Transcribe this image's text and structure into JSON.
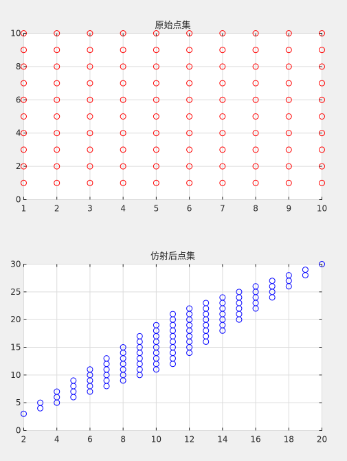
{
  "chart_data": [
    {
      "type": "scatter",
      "title": "原始点集",
      "xlabel": "",
      "ylabel": "",
      "xlim": [
        1,
        10
      ],
      "ylim": [
        0,
        10
      ],
      "xticks": [
        1,
        2,
        3,
        4,
        5,
        6,
        7,
        8,
        9,
        10
      ],
      "yticks": [
        0,
        2,
        4,
        6,
        8,
        10
      ],
      "grid": true,
      "marker": "circle-open",
      "color": "#ff0000",
      "series": [
        {
          "x_values": [
            1,
            2,
            3,
            4,
            5,
            6,
            7,
            8,
            9,
            10
          ],
          "y_values": [
            1,
            2,
            3,
            4,
            5,
            6,
            7,
            8,
            9,
            10
          ],
          "layout": "all x-y combinations"
        }
      ]
    },
    {
      "type": "scatter",
      "title": "仿射后点集",
      "xlabel": "",
      "ylabel": "",
      "xlim": [
        2,
        20
      ],
      "ylim": [
        0,
        30
      ],
      "xticks": [
        2,
        4,
        6,
        8,
        10,
        12,
        14,
        16,
        18,
        20
      ],
      "yticks": [
        0,
        5,
        10,
        15,
        20,
        25,
        30
      ],
      "grid": true,
      "marker": "circle-open",
      "color": "#0000ff",
      "series": [
        {
          "points": [
            [
              2,
              3
            ],
            [
              3,
              4
            ],
            [
              3,
              5
            ],
            [
              4,
              5
            ],
            [
              4,
              6
            ],
            [
              4,
              7
            ],
            [
              5,
              6
            ],
            [
              5,
              7
            ],
            [
              5,
              8
            ],
            [
              5,
              9
            ],
            [
              6,
              7
            ],
            [
              6,
              8
            ],
            [
              6,
              9
            ],
            [
              6,
              10
            ],
            [
              6,
              11
            ],
            [
              7,
              8
            ],
            [
              7,
              9
            ],
            [
              7,
              10
            ],
            [
              7,
              11
            ],
            [
              7,
              12
            ],
            [
              7,
              13
            ],
            [
              8,
              9
            ],
            [
              8,
              10
            ],
            [
              8,
              11
            ],
            [
              8,
              12
            ],
            [
              8,
              13
            ],
            [
              8,
              14
            ],
            [
              8,
              15
            ],
            [
              9,
              10
            ],
            [
              9,
              11
            ],
            [
              9,
              12
            ],
            [
              9,
              13
            ],
            [
              9,
              14
            ],
            [
              9,
              15
            ],
            [
              9,
              16
            ],
            [
              9,
              17
            ],
            [
              10,
              11
            ],
            [
              10,
              12
            ],
            [
              10,
              13
            ],
            [
              10,
              14
            ],
            [
              10,
              15
            ],
            [
              10,
              16
            ],
            [
              10,
              17
            ],
            [
              10,
              18
            ],
            [
              10,
              19
            ],
            [
              11,
              12
            ],
            [
              11,
              13
            ],
            [
              11,
              14
            ],
            [
              11,
              15
            ],
            [
              11,
              16
            ],
            [
              11,
              17
            ],
            [
              11,
              18
            ],
            [
              11,
              19
            ],
            [
              11,
              20
            ],
            [
              11,
              21
            ],
            [
              12,
              14
            ],
            [
              12,
              15
            ],
            [
              12,
              16
            ],
            [
              12,
              17
            ],
            [
              12,
              18
            ],
            [
              12,
              19
            ],
            [
              12,
              20
            ],
            [
              12,
              21
            ],
            [
              12,
              22
            ],
            [
              13,
              16
            ],
            [
              13,
              17
            ],
            [
              13,
              18
            ],
            [
              13,
              19
            ],
            [
              13,
              20
            ],
            [
              13,
              21
            ],
            [
              13,
              22
            ],
            [
              13,
              23
            ],
            [
              14,
              18
            ],
            [
              14,
              19
            ],
            [
              14,
              20
            ],
            [
              14,
              21
            ],
            [
              14,
              22
            ],
            [
              14,
              23
            ],
            [
              14,
              24
            ],
            [
              15,
              20
            ],
            [
              15,
              21
            ],
            [
              15,
              22
            ],
            [
              15,
              23
            ],
            [
              15,
              24
            ],
            [
              15,
              25
            ],
            [
              16,
              22
            ],
            [
              16,
              23
            ],
            [
              16,
              24
            ],
            [
              16,
              25
            ],
            [
              16,
              26
            ],
            [
              17,
              24
            ],
            [
              17,
              25
            ],
            [
              17,
              26
            ],
            [
              17,
              27
            ],
            [
              18,
              26
            ],
            [
              18,
              27
            ],
            [
              18,
              28
            ],
            [
              19,
              28
            ],
            [
              19,
              29
            ],
            [
              20,
              30
            ]
          ]
        }
      ]
    }
  ]
}
